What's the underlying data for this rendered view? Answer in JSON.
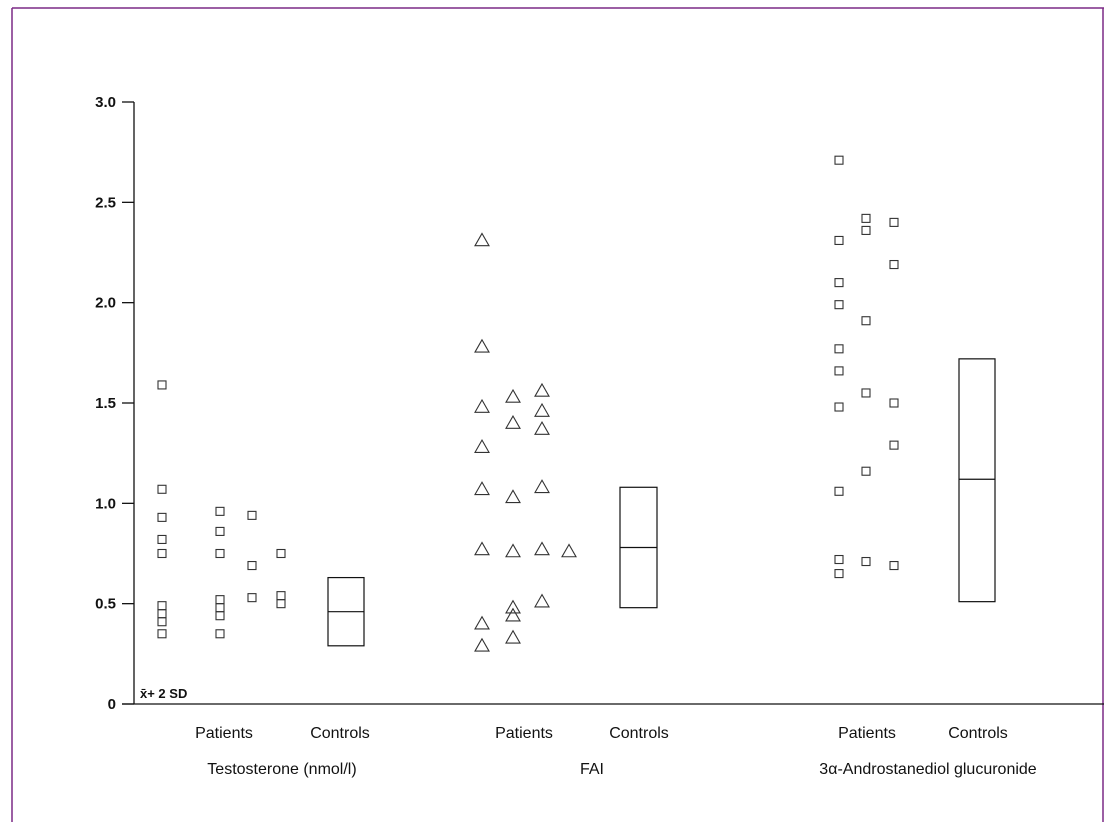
{
  "colors": {
    "frame": "#7b2a86",
    "ink": "#111111",
    "marker": "#333333",
    "background": "#ffffff"
  },
  "chart_data": {
    "type": "scatter",
    "title": "",
    "xlabel": "",
    "ylabel": "",
    "ylim": [
      0,
      3.0
    ],
    "grid": false,
    "legend": "none",
    "y_ticks": [
      {
        "value": 0,
        "label": "0"
      },
      {
        "value": 0.5,
        "label": "0.5"
      },
      {
        "value": 1.0,
        "label": "1.0"
      },
      {
        "value": 1.5,
        "label": "1.5"
      },
      {
        "value": 2.0,
        "label": "2.0"
      },
      {
        "value": 2.5,
        "label": "2.5"
      },
      {
        "value": 3.0,
        "label": "3.0"
      }
    ],
    "annotation": "x̄+ 2 SD",
    "groups": [
      {
        "label": "Testosterone (nmol/l)",
        "patients_label": "Patients",
        "controls_label": "Controls",
        "marker": "square",
        "patients": [
          [
            1.59,
            1.07,
            0.93,
            0.82,
            0.75,
            0.49,
            0.45,
            0.41,
            0.35
          ],
          [
            0.96,
            0.86,
            0.75,
            0.52,
            0.48,
            0.44,
            0.35
          ],
          [
            0.94,
            0.69,
            0.53
          ],
          [
            0.75,
            0.54,
            0.5
          ]
        ],
        "controls": {
          "low": 0.29,
          "median": 0.46,
          "high": 0.63
        }
      },
      {
        "label": "FAI",
        "patients_label": "Patients",
        "controls_label": "Controls",
        "marker": "triangle",
        "patients": [
          [
            2.31,
            1.78,
            1.48,
            1.28,
            1.07,
            0.77,
            0.4,
            0.29
          ],
          [
            1.53,
            1.4,
            1.03,
            0.76,
            0.48,
            0.44,
            0.33
          ],
          [
            1.56,
            1.46,
            1.37,
            1.08,
            0.77,
            0.51
          ],
          [
            0.76
          ]
        ],
        "controls": {
          "low": 0.48,
          "median": 0.78,
          "high": 1.08
        }
      },
      {
        "label": "3α-Androstanediol glucuronide",
        "patients_label": "Patients",
        "controls_label": "Controls",
        "marker": "square",
        "patients": [
          [
            2.71,
            2.31,
            2.1,
            1.99,
            1.77,
            1.66,
            1.48,
            1.06,
            0.72,
            0.65
          ],
          [
            2.42,
            2.36,
            1.91,
            1.55,
            1.16,
            0.71
          ],
          [
            2.4,
            2.19,
            1.5,
            1.29,
            0.69
          ]
        ],
        "controls": {
          "low": 0.51,
          "median": 1.12,
          "high": 1.72
        }
      }
    ]
  }
}
